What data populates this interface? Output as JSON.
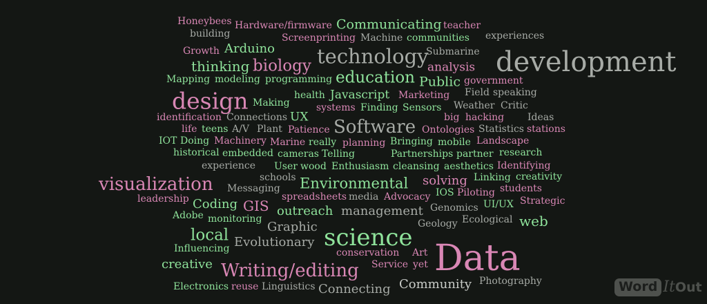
{
  "words": [
    "Honeybees",
    "Hardware/firmware",
    "Communicating",
    "teacher",
    "building",
    "Screenprinting",
    "Machine",
    "communities",
    "experiences",
    "Growth",
    "Arduino",
    "technology",
    "Submarine",
    "development",
    "thinking",
    "biology",
    "analysis",
    "Mapping",
    "modeling",
    "programming",
    "education",
    "government",
    "Public",
    "health",
    "Javascript",
    "Marketing",
    "Field",
    "speaking",
    "design",
    "Making",
    "systems",
    "Finding",
    "Sensors",
    "Weather",
    "Critic",
    "identification",
    "Connections",
    "UX",
    "big",
    "hacking",
    "Ideas",
    "life",
    "teens",
    "A/V",
    "Plant",
    "Patience",
    "Software",
    "Ontologies",
    "Statistics",
    "stations",
    "IOT",
    "Doing",
    "Machinery",
    "Marine",
    "really",
    "planning",
    "Bringing",
    "mobile",
    "Landscape",
    "historical",
    "embedded",
    "cameras",
    "Telling",
    "Partnerships",
    "partner",
    "research",
    "experience",
    "User",
    "wood",
    "Enthusiasm",
    "cleansing",
    "aesthetics",
    "Identifying",
    "schools",
    "Linking",
    "creativity",
    "visualization",
    "Environmental",
    "solving",
    "Messaging",
    "IOS",
    "Piloting",
    "students",
    "spreadsheets",
    "media",
    "Advocacy",
    "leadership",
    "Coding",
    "GIS",
    "Strategic",
    "UI/UX",
    "Genomics",
    "outreach",
    "management",
    "Adobe",
    "monitoring",
    "Ecological",
    "web",
    "Graphic",
    "Geology",
    "local",
    "Evolutionary",
    "science",
    "Influencing",
    "Art",
    "conservation",
    "Data",
    "creative",
    "Service",
    "yet",
    "Writing/editing",
    "Photography",
    "Community",
    "Electronics",
    "reuse",
    "Linguistics",
    "Connecting"
  ],
  "logo": {
    "word": "Word",
    "it": "It",
    "out": "Out"
  }
}
